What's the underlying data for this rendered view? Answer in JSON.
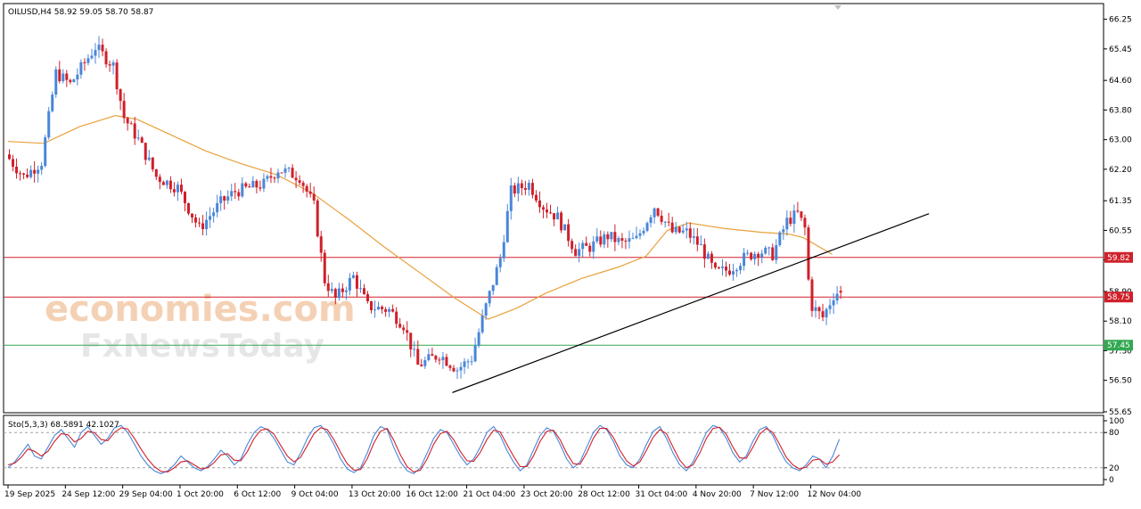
{
  "colors": {
    "bull": "#4a86d8",
    "bear": "#d0202a",
    "ma": "#e8a13a",
    "resistance": "#d0202a",
    "support": "#33a853",
    "trendline": "#000000",
    "stoch_k": "#4a86d8",
    "stoch_d": "#d0202a",
    "watermark": "#f3c9a8"
  },
  "icons": {
    "scroll_marker": "triangle-down-icon"
  },
  "watermark": {
    "line1": "economies.com",
    "line2": "FxNewsToday"
  },
  "chart_data": [
    {
      "type": "candlestick",
      "title": "OILUSD,H4  58.92 59.05 58.70 58.87",
      "ylim": [
        55.65,
        66.65
      ],
      "yticks": [
        66.25,
        65.45,
        64.6,
        63.8,
        63.0,
        62.2,
        61.35,
        60.55,
        59.75,
        58.9,
        58.1,
        57.3,
        56.5,
        55.65
      ],
      "ytick_labels": [
        "66.25",
        "65.45",
        "64.60",
        "63.80",
        "63.00",
        "62.20",
        "61.35",
        "60.55",
        "59.75",
        "58.90",
        "58.10",
        "57.30",
        "56.50",
        "55.65"
      ],
      "xtick_labels": [
        "19 Sep 2025",
        "24 Sep 12:00",
        "29 Sep 04:00",
        "1 Oct 20:00",
        "6 Oct 12:00",
        "9 Oct 04:00",
        "13 Oct 20:00",
        "16 Oct 12:00",
        "21 Oct 04:00",
        "23 Oct 20:00",
        "28 Oct 12:00",
        "31 Oct 04:00",
        "4 Nov 20:00",
        "7 Nov 12:00",
        "12 Nov 04:00"
      ],
      "num_bars": 233,
      "xtick_bar_index": [
        0,
        16,
        32,
        48,
        64,
        80,
        96,
        112,
        128,
        144,
        160,
        176,
        192,
        208,
        224
      ],
      "price_path_anchors": [
        [
          0,
          62.6
        ],
        [
          5,
          62.0
        ],
        [
          10,
          62.4
        ],
        [
          14,
          64.8
        ],
        [
          18,
          64.5
        ],
        [
          25,
          65.5
        ],
        [
          30,
          65.0
        ],
        [
          33,
          63.6
        ],
        [
          37,
          63.0
        ],
        [
          42,
          62.0
        ],
        [
          48,
          61.7
        ],
        [
          54,
          60.6
        ],
        [
          60,
          61.3
        ],
        [
          64,
          61.6
        ],
        [
          72,
          61.8
        ],
        [
          76,
          62.2
        ],
        [
          82,
          62.0
        ],
        [
          86,
          61.2
        ],
        [
          89,
          59.2
        ],
        [
          92,
          58.7
        ],
        [
          97,
          59.3
        ],
        [
          101,
          58.5
        ],
        [
          107,
          58.4
        ],
        [
          111,
          58.0
        ],
        [
          115,
          56.9
        ],
        [
          121,
          57.2
        ],
        [
          126,
          56.8
        ],
        [
          130,
          57.1
        ],
        [
          134,
          58.5
        ],
        [
          138,
          59.8
        ],
        [
          141,
          61.6
        ],
        [
          146,
          61.8
        ],
        [
          150,
          61.2
        ],
        [
          154,
          60.9
        ],
        [
          159,
          60.0
        ],
        [
          163,
          60.1
        ],
        [
          168,
          60.4
        ],
        [
          172,
          60.2
        ],
        [
          176,
          60.3
        ],
        [
          181,
          61.2
        ],
        [
          186,
          60.5
        ],
        [
          190,
          60.5
        ],
        [
          194,
          60.1
        ],
        [
          198,
          59.4
        ],
        [
          202,
          59.5
        ],
        [
          206,
          59.8
        ],
        [
          210,
          60.0
        ],
        [
          214,
          59.9
        ],
        [
          218,
          60.8
        ],
        [
          221,
          61.0
        ],
        [
          223,
          60.6
        ],
        [
          224,
          59.2
        ],
        [
          225,
          58.5
        ],
        [
          228,
          58.2
        ],
        [
          231,
          58.8
        ],
        [
          232,
          58.87
        ]
      ],
      "last_values": {
        "open": 58.92,
        "high": 59.05,
        "low": 58.7,
        "close": 58.87
      },
      "moving_average": [
        [
          0,
          62.95
        ],
        [
          10,
          62.9
        ],
        [
          20,
          63.35
        ],
        [
          30,
          63.65
        ],
        [
          36,
          63.55
        ],
        [
          45,
          63.15
        ],
        [
          55,
          62.7
        ],
        [
          65,
          62.35
        ],
        [
          75,
          62.05
        ],
        [
          85,
          61.55
        ],
        [
          95,
          60.85
        ],
        [
          105,
          60.1
        ],
        [
          115,
          59.4
        ],
        [
          125,
          58.7
        ],
        [
          134,
          58.15
        ],
        [
          142,
          58.45
        ],
        [
          150,
          58.85
        ],
        [
          160,
          59.25
        ],
        [
          170,
          59.55
        ],
        [
          178,
          59.85
        ],
        [
          184,
          60.55
        ],
        [
          190,
          60.75
        ],
        [
          200,
          60.6
        ],
        [
          210,
          60.5
        ],
        [
          218,
          60.45
        ],
        [
          222,
          60.35
        ],
        [
          230,
          59.9
        ]
      ],
      "horizontal_levels": [
        {
          "value": 59.82,
          "label": "59.82",
          "color": "#d0202a"
        },
        {
          "value": 58.75,
          "label": "58.75",
          "color": "#d0202a"
        },
        {
          "value": 57.45,
          "label": "57.45",
          "color": "#33a853"
        }
      ],
      "trendline": {
        "from": [
          124,
          56.17
        ],
        "to": [
          257,
          61.0
        ]
      }
    },
    {
      "type": "line",
      "title": "Sto(5,3,3) 68.5891 42.1027",
      "ylim": [
        0,
        100
      ],
      "yticks": [
        100,
        80,
        20,
        0
      ],
      "ytick_labels": [
        "100",
        "80",
        "20",
        "0"
      ],
      "levels": [
        80,
        20
      ],
      "series": [
        {
          "values": [
            20,
            30,
            45,
            60,
            40,
            35,
            55,
            75,
            85,
            70,
            55,
            80,
            90,
            75,
            60,
            70,
            88,
            92,
            80,
            60,
            40,
            25,
            15,
            10,
            15,
            25,
            40,
            30,
            20,
            15,
            22,
            35,
            50,
            40,
            25,
            35,
            60,
            80,
            90,
            85,
            70,
            50,
            30,
            25,
            45,
            70,
            88,
            92,
            80,
            60,
            35,
            18,
            12,
            20,
            45,
            75,
            90,
            85,
            55,
            30,
            15,
            10,
            20,
            45,
            70,
            85,
            80,
            60,
            40,
            25,
            35,
            55,
            80,
            90,
            75,
            50,
            30,
            15,
            25,
            50,
            75,
            88,
            82,
            60,
            35,
            20,
            30,
            55,
            80,
            92,
            85,
            65,
            40,
            25,
            20,
            35,
            60,
            82,
            90,
            70,
            45,
            25,
            15,
            30,
            55,
            80,
            92,
            88,
            70,
            45,
            30,
            40,
            65,
            85,
            90,
            75,
            50,
            30,
            20,
            15,
            25,
            40,
            35,
            20,
            40,
            68.59
          ]
        },
        {
          "values": [
            25,
            28,
            38,
            52,
            48,
            40,
            48,
            65,
            78,
            76,
            64,
            70,
            82,
            80,
            68,
            66,
            80,
            88,
            86,
            70,
            52,
            35,
            22,
            14,
            13,
            20,
            30,
            32,
            25,
            18,
            20,
            29,
            42,
            44,
            33,
            32,
            48,
            70,
            84,
            86,
            77,
            58,
            40,
            30,
            38,
            58,
            78,
            88,
            85,
            68,
            46,
            27,
            16,
            17,
            35,
            62,
            82,
            87,
            67,
            42,
            22,
            13,
            16,
            35,
            60,
            78,
            82,
            68,
            48,
            32,
            31,
            46,
            68,
            84,
            81,
            60,
            40,
            22,
            22,
            40,
            65,
            82,
            84,
            68,
            45,
            27,
            26,
            45,
            70,
            87,
            87,
            72,
            50,
            32,
            23,
            30,
            50,
            72,
            85,
            78,
            55,
            33,
            20,
            25,
            45,
            70,
            87,
            89,
            77,
            55,
            37,
            36,
            55,
            77,
            87,
            80,
            60,
            38,
            25,
            18,
            21,
            33,
            35,
            26,
            30,
            42.1
          ]
        }
      ]
    }
  ]
}
